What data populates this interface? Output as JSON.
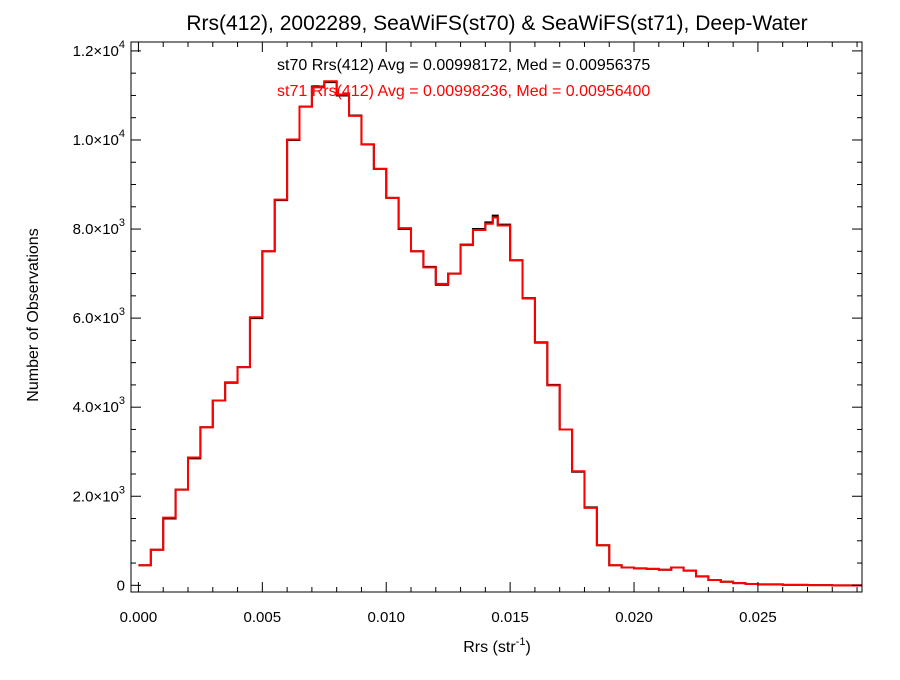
{
  "chart_data": {
    "type": "line",
    "title": "Rrs(412), 2002289, SeaWiFS(st70) & SeaWiFS(st71), Deep-Water",
    "xlabel": "Rrs (str",
    "xlabel_sup": "-1",
    "xlabel_close": ")",
    "ylabel": "Number of Observations",
    "xlim": [
      -0.0003,
      0.0292
    ],
    "ylim": [
      -150,
      12200
    ],
    "x_ticks": [
      {
        "value": 0.0,
        "label": "0.000"
      },
      {
        "value": 0.005,
        "label": "0.005"
      },
      {
        "value": 0.01,
        "label": "0.010"
      },
      {
        "value": 0.015,
        "label": "0.015"
      },
      {
        "value": 0.02,
        "label": "0.020"
      },
      {
        "value": 0.025,
        "label": "0.025"
      }
    ],
    "y_ticks": [
      {
        "value": 0,
        "mantissa": "0",
        "exp": ""
      },
      {
        "value": 2000,
        "mantissa": "2.0×10",
        "exp": "3"
      },
      {
        "value": 4000,
        "mantissa": "4.0×10",
        "exp": "3"
      },
      {
        "value": 6000,
        "mantissa": "6.0×10",
        "exp": "3"
      },
      {
        "value": 8000,
        "mantissa": "8.0×10",
        "exp": "3"
      },
      {
        "value": 10000,
        "mantissa": "1.0×10",
        "exp": "4"
      },
      {
        "value": 12000,
        "mantissa": "1.2×10",
        "exp": "4"
      }
    ],
    "annotations": [
      {
        "text": "st70 Rrs(412) Avg = 0.00998172, Med = 0.00956375",
        "color": "#000000"
      },
      {
        "text": "st71 Rrs(412) Avg = 0.00998236, Med = 0.00956400",
        "color": "#ff0000"
      }
    ],
    "grid": false,
    "series": [
      {
        "color": "#000000",
        "x": [
          0.0,
          0.0005,
          0.001,
          0.0015,
          0.002,
          0.0025,
          0.003,
          0.0035,
          0.004,
          0.0045,
          0.005,
          0.0055,
          0.006,
          0.0065,
          0.007,
          0.0075,
          0.008,
          0.0085,
          0.009,
          0.0095,
          0.01,
          0.0105,
          0.011,
          0.0115,
          0.012,
          0.0125,
          0.013,
          0.0135,
          0.014,
          0.0143,
          0.0145,
          0.015,
          0.0155,
          0.016,
          0.0165,
          0.017,
          0.0175,
          0.018,
          0.0185,
          0.019,
          0.0195,
          0.02,
          0.0205,
          0.021,
          0.0215,
          0.022,
          0.0225,
          0.023,
          0.0235,
          0.024,
          0.0245,
          0.025,
          0.026,
          0.027,
          0.028,
          0.0292
        ],
        "values": [
          450,
          800,
          1500,
          2150,
          2850,
          3550,
          4150,
          4550,
          4900,
          6000,
          7500,
          8650,
          10000,
          10750,
          11200,
          11300,
          11000,
          10550,
          9900,
          9350,
          8700,
          8000,
          7500,
          7150,
          6750,
          7000,
          7650,
          8000,
          8150,
          8300,
          8100,
          7300,
          6450,
          5450,
          4500,
          3500,
          2550,
          1750,
          900,
          450,
          400,
          380,
          370,
          350,
          400,
          330,
          200,
          120,
          80,
          50,
          30,
          20,
          10,
          5,
          0,
          0
        ]
      },
      {
        "color": "#ff0000",
        "x": [
          0.0,
          0.0005,
          0.001,
          0.0015,
          0.002,
          0.0025,
          0.003,
          0.0035,
          0.004,
          0.0045,
          0.005,
          0.0055,
          0.006,
          0.0065,
          0.007,
          0.0075,
          0.008,
          0.0085,
          0.009,
          0.0095,
          0.01,
          0.0105,
          0.011,
          0.0115,
          0.012,
          0.0125,
          0.013,
          0.0135,
          0.014,
          0.0143,
          0.0145,
          0.015,
          0.0155,
          0.016,
          0.0165,
          0.017,
          0.0175,
          0.018,
          0.0185,
          0.019,
          0.0195,
          0.02,
          0.0205,
          0.021,
          0.0215,
          0.022,
          0.0225,
          0.023,
          0.0235,
          0.024,
          0.0245,
          0.025,
          0.026,
          0.027,
          0.028,
          0.0292
        ],
        "values": [
          450,
          800,
          1520,
          2150,
          2870,
          3550,
          4150,
          4560,
          4900,
          6020,
          7500,
          8660,
          10010,
          10750,
          11180,
          11320,
          11020,
          10540,
          9900,
          9350,
          8700,
          8020,
          7500,
          7140,
          6770,
          7000,
          7640,
          7980,
          8120,
          8260,
          8080,
          7300,
          6440,
          5460,
          4490,
          3500,
          2560,
          1740,
          900,
          450,
          400,
          380,
          370,
          350,
          400,
          330,
          200,
          120,
          80,
          50,
          30,
          20,
          10,
          5,
          0,
          0
        ]
      }
    ]
  }
}
